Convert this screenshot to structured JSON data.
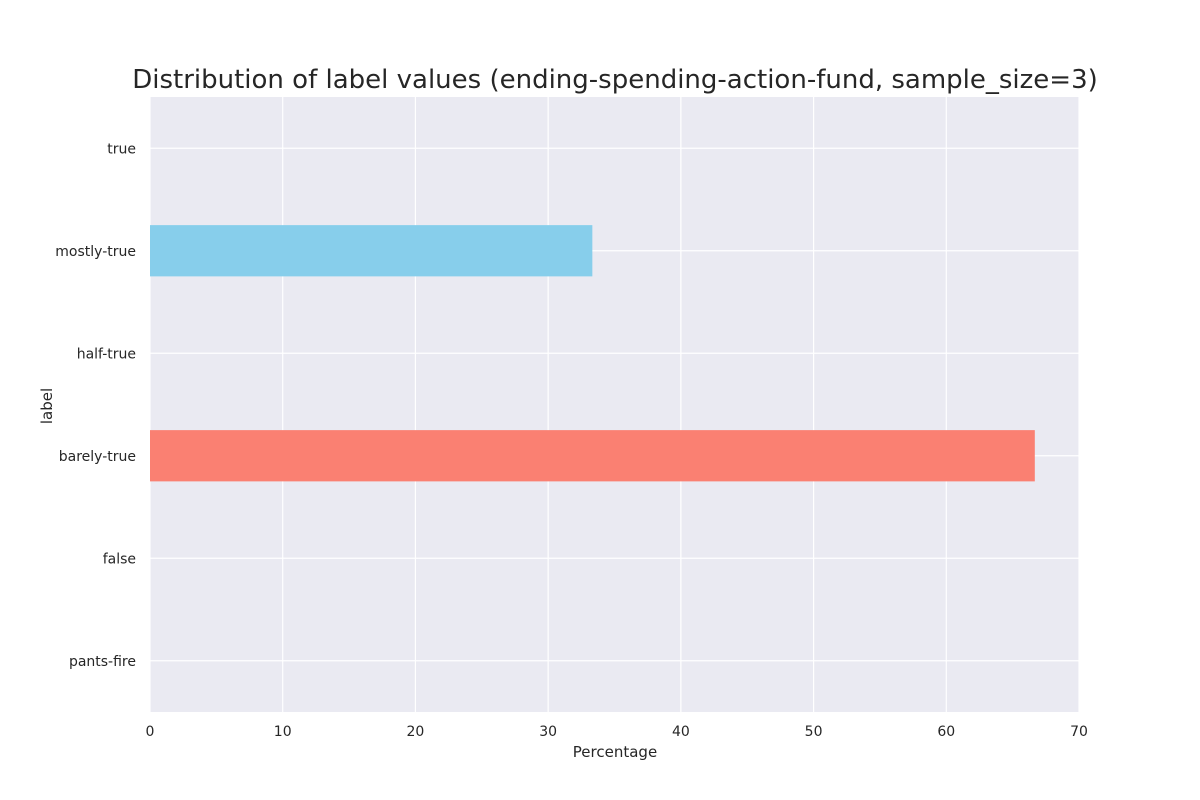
{
  "chart_data": {
    "type": "bar",
    "orientation": "horizontal",
    "title": "Distribution of label values (ending-spending-action-fund, sample_size=3)",
    "xlabel": "Percentage",
    "ylabel": "label",
    "categories": [
      "true",
      "mostly-true",
      "half-true",
      "barely-true",
      "false",
      "pants-fire"
    ],
    "values": [
      0,
      33.33,
      0,
      66.67,
      0,
      0
    ],
    "colors": [
      "#87ceeb",
      "#87ceeb",
      "#87ceeb",
      "#fa8072",
      "#87ceeb",
      "#87ceeb"
    ],
    "xlim": [
      0,
      70
    ],
    "xticks": [
      "0",
      "10",
      "20",
      "30",
      "40",
      "50",
      "60",
      "70"
    ],
    "grid": true,
    "background_color": "#eaeaf2",
    "grid_color": "#ffffff"
  }
}
